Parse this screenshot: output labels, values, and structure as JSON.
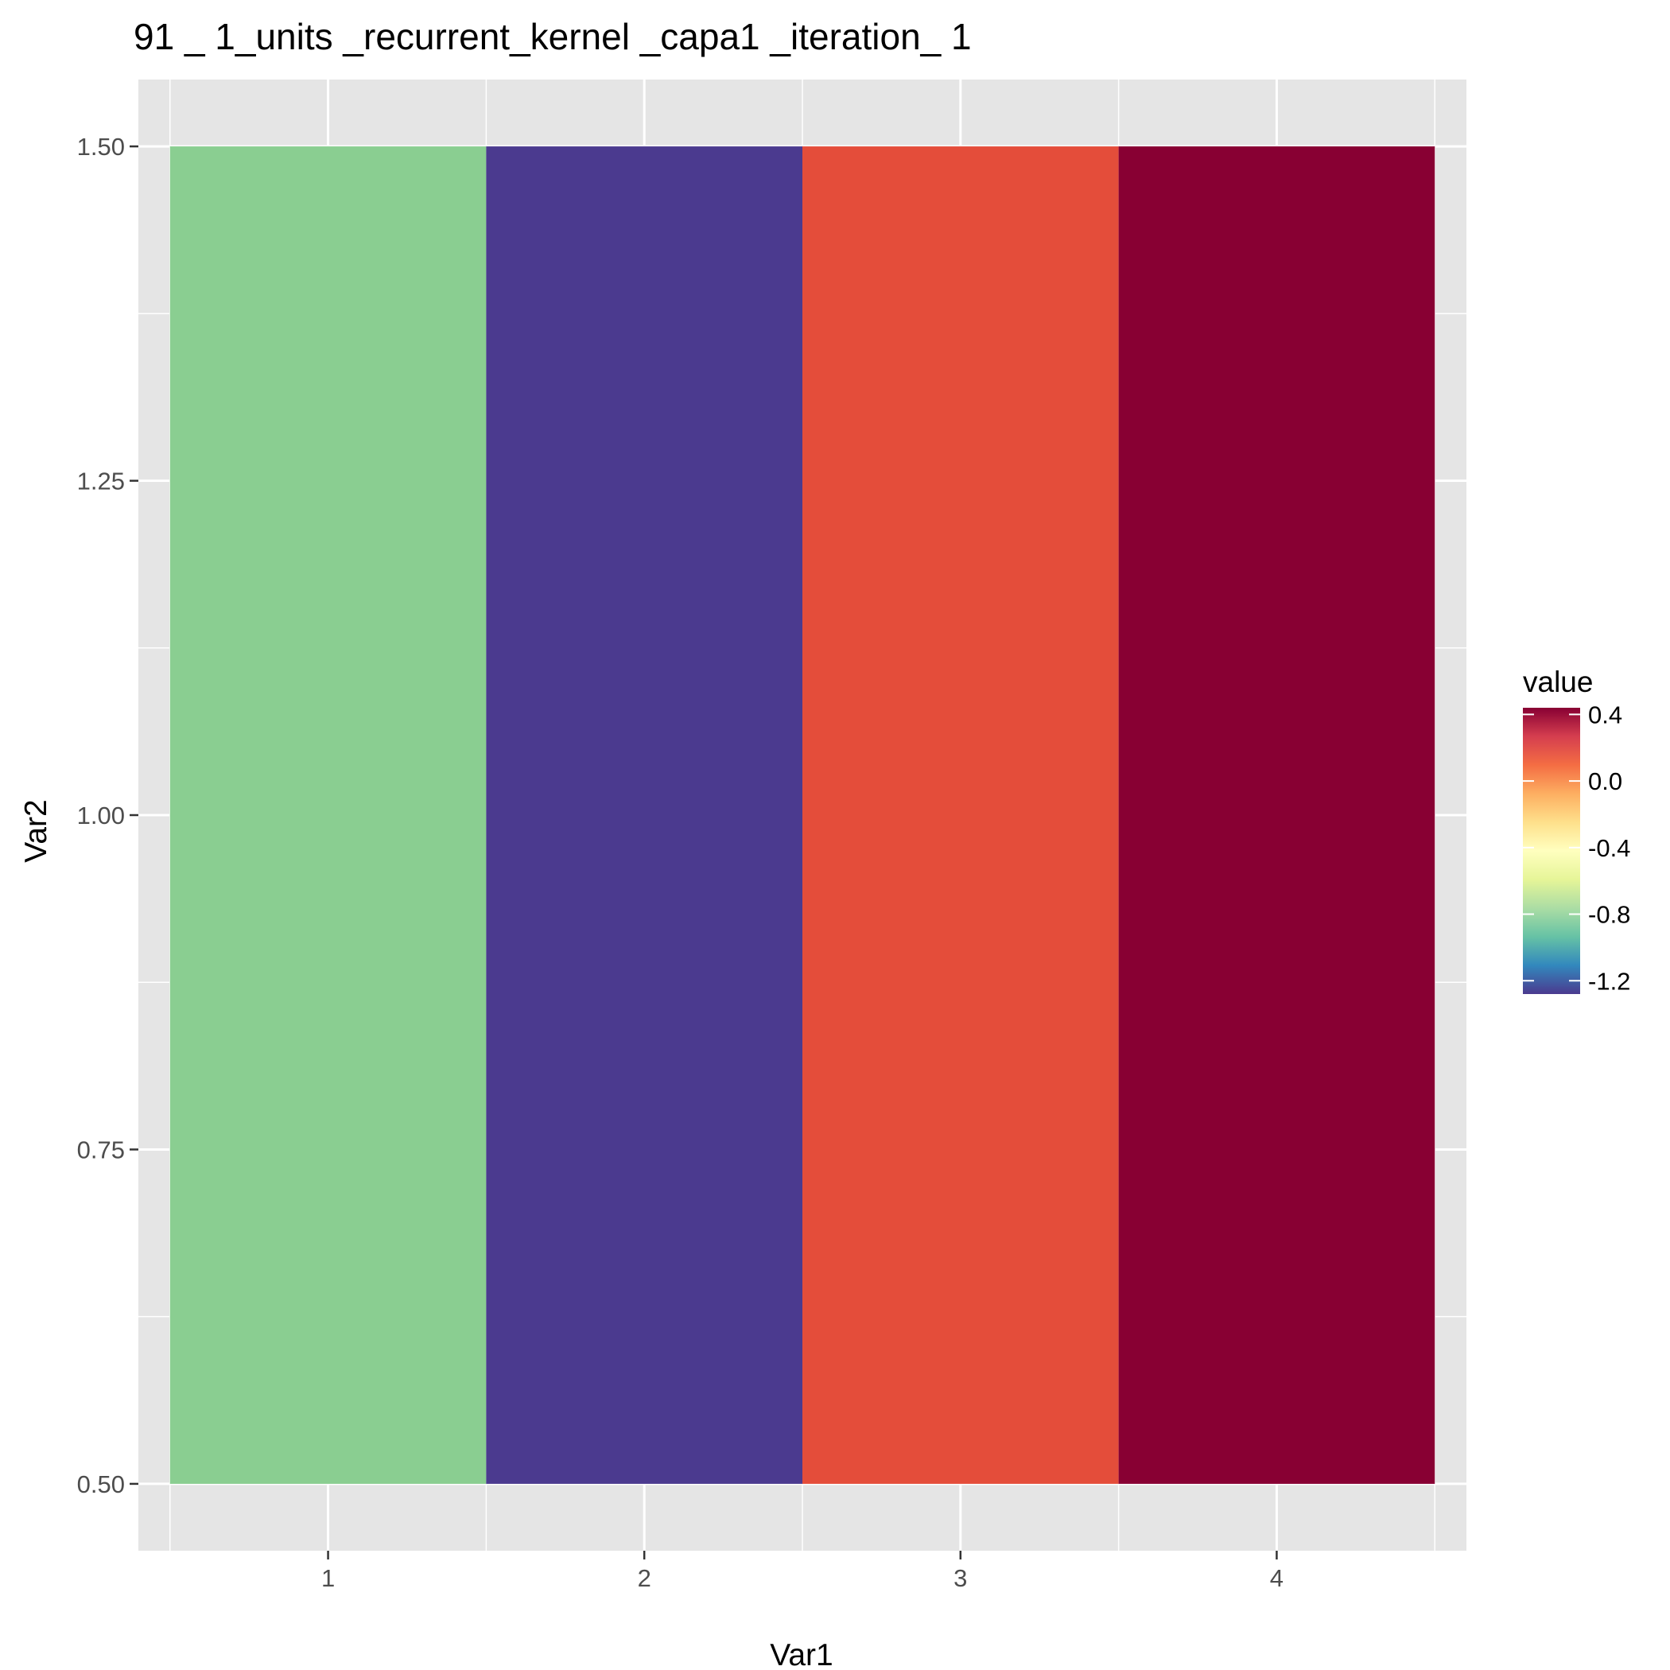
{
  "chart_data": {
    "type": "heatmap",
    "title": "91 _ 1_units _recurrent_kernel _capa1 _iteration_ 1",
    "xlabel": "Var1",
    "ylabel": "Var2",
    "x_categories": [
      "1",
      "2",
      "3",
      "4"
    ],
    "y_ticks": [
      "0.50",
      "0.75",
      "1.00",
      "1.25",
      "1.50"
    ],
    "ylim": [
      0.45,
      1.55
    ],
    "cells": [
      {
        "x": 1,
        "y": 1,
        "value": -0.75,
        "color": "#8ACE91"
      },
      {
        "x": 2,
        "y": 1,
        "value": -1.25,
        "color": "#4B3A8F"
      },
      {
        "x": 3,
        "y": 1,
        "value": 0.15,
        "color": "#E44D3A"
      },
      {
        "x": 4,
        "y": 1,
        "value": 0.42,
        "color": "#880033"
      }
    ],
    "legend": {
      "title": "value",
      "position": "right",
      "labels": [
        "0.4",
        "0.0",
        "-0.4",
        "-0.8",
        "-1.2"
      ],
      "label_values": [
        0.4,
        0.0,
        -0.4,
        -0.8,
        -1.2
      ],
      "min": -1.28,
      "max": 0.44,
      "palette": [
        "#4B3A8F",
        "#3288BD",
        "#66C2A5",
        "#ABDDA4",
        "#E6F598",
        "#FFFFBF",
        "#FEE08B",
        "#FDAE61",
        "#F46D43",
        "#D53E4F",
        "#880033"
      ]
    },
    "grid": true,
    "panel_background": "#E5E5E5",
    "grid_color": "#FFFFFF"
  }
}
